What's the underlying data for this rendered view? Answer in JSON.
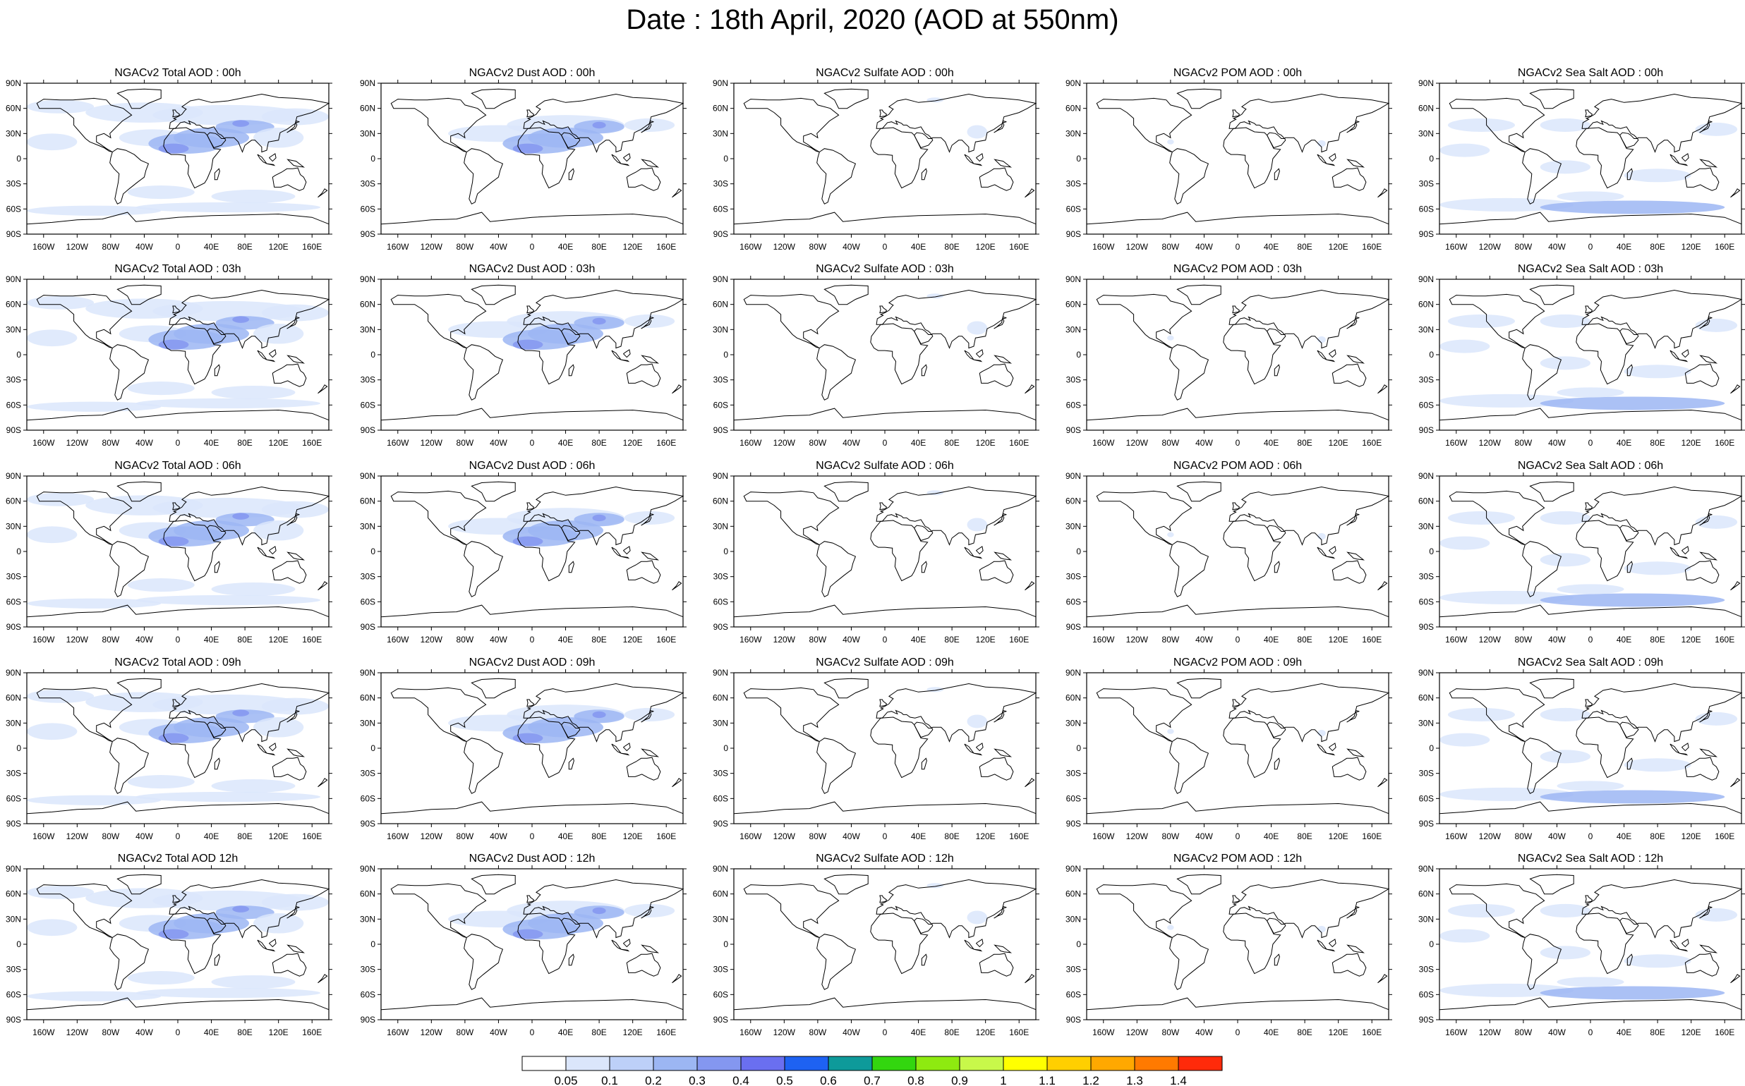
{
  "title": "Date : 18th April, 2020 (AOD at 550nm)",
  "rows": [
    [
      "NGACv2 Total AOD : 00h",
      "NGACv2 Dust AOD : 00h",
      "NGACv2 Sulfate AOD : 00h",
      "NGACv2 POM AOD : 00h",
      "NGACv2 Sea Salt AOD : 00h"
    ],
    [
      "NGACv2 Total AOD : 03h",
      "NGACv2 Dust AOD : 03h",
      "NGACv2 Sulfate AOD : 03h",
      "NGACv2 POM AOD : 03h",
      "NGACv2 Sea Salt AOD : 03h"
    ],
    [
      "NGACv2 Total AOD : 06h",
      "NGACv2 Dust AOD : 06h",
      "NGACv2 Sulfate AOD : 06h",
      "NGACv2 POM AOD : 06h",
      "NGACv2 Sea Salt AOD : 06h"
    ],
    [
      "NGACv2 Total AOD : 09h",
      "NGACv2 Dust AOD : 09h",
      "NGACv2 Sulfate AOD : 09h",
      "NGACv2 POM AOD : 09h",
      "NGACv2 Sea Salt  AOD : 09h"
    ],
    [
      "NGACv2 Total AOD  12h",
      "NGACv2 Dust AOD : 12h",
      "NGACv2 Sulfate AOD : 12h",
      "NGACv2 POM  AOD : 12h",
      "NGACv2 Sea Salt  AOD : 12h"
    ]
  ],
  "lat_ticks": [
    "90N",
    "60N",
    "30N",
    "0",
    "30S",
    "60S",
    "90S"
  ],
  "lon_ticks": [
    "160W",
    "120W",
    "80W",
    "40W",
    "0",
    "40E",
    "80E",
    "120E",
    "160E"
  ],
  "colorbar": {
    "labels": [
      "0.05",
      "0.1",
      "0.2",
      "0.3",
      "0.4",
      "0.5",
      "0.6",
      "0.7",
      "0.8",
      "0.9",
      "1",
      "1.1",
      "1.2",
      "1.3",
      "1.4"
    ],
    "colors": [
      "#ffffff",
      "#dbe6fb",
      "#bdd0f8",
      "#9cb6f3",
      "#8497f0",
      "#6a6ff0",
      "#1e62f2",
      "#0e9a9a",
      "#33d60f",
      "#8eea10",
      "#c8f84a",
      "#ffff00",
      "#ffcf00",
      "#ffa800",
      "#ff7a00",
      "#ff2a0a"
    ]
  },
  "colors": {
    "land_outline": "#000000",
    "light_aerosol": "#dbe6fb",
    "mid_aerosol": "#9cb6f3",
    "high_aerosol": "#8497f0"
  }
}
